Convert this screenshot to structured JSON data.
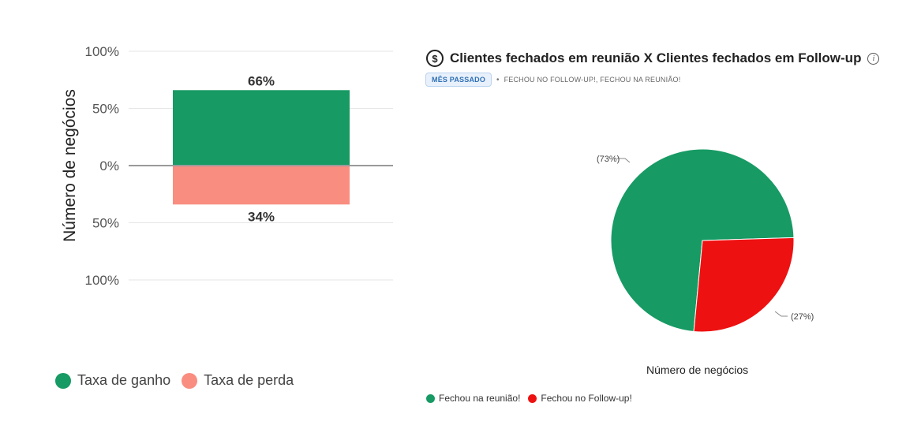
{
  "left_legend": [
    {
      "label": "Taxa de ganho",
      "color": "#179a63"
    },
    {
      "label": "Taxa de perda",
      "color": "#f98d80"
    }
  ],
  "right_card": {
    "icon": "dollar-circle-icon",
    "title": "Clientes fechados em reunião X Clientes fechados em Follow-up",
    "info_icon": "info-icon",
    "period_badge": "MÊS PASSADO",
    "filter_text": "FECHOU NO FOLLOW-UP!, FECHOU NA REUNIÃO!",
    "pie_xlabel": "Número de negócios",
    "legend": [
      {
        "label": "Fechou na reunião!",
        "color": "#179a63"
      },
      {
        "label": "Fechou no Follow-up!",
        "color": "#ee1111"
      }
    ]
  },
  "chart_data": [
    {
      "type": "bar",
      "ylabel": "Número de negócios",
      "ylim": [
        -100,
        100
      ],
      "yticks": [
        {
          "value": 100,
          "label": "100%"
        },
        {
          "value": 50,
          "label": "50%"
        },
        {
          "value": 0,
          "label": "0%"
        },
        {
          "value": -50,
          "label": "50%"
        },
        {
          "value": -100,
          "label": "100%"
        }
      ],
      "series": [
        {
          "name": "Taxa de ganho",
          "values": [
            66
          ],
          "label": "66%",
          "color": "#179a63"
        },
        {
          "name": "Taxa de perda",
          "values": [
            -34
          ],
          "label": "34%",
          "color": "#f98d80"
        }
      ],
      "grid": true,
      "legend_position": "bottom-left"
    },
    {
      "type": "pie",
      "title": "Clientes fechados em reunião X Clientes fechados em Follow-up",
      "xlabel": "Número de negócios",
      "slices": [
        {
          "name": "Fechou na reunião!",
          "value": 73,
          "label": "(73%)",
          "color": "#179a63"
        },
        {
          "name": "Fechou no Follow-up!",
          "value": 27,
          "label": "(27%)",
          "color": "#ee1111"
        }
      ],
      "legend_position": "bottom-left"
    }
  ]
}
